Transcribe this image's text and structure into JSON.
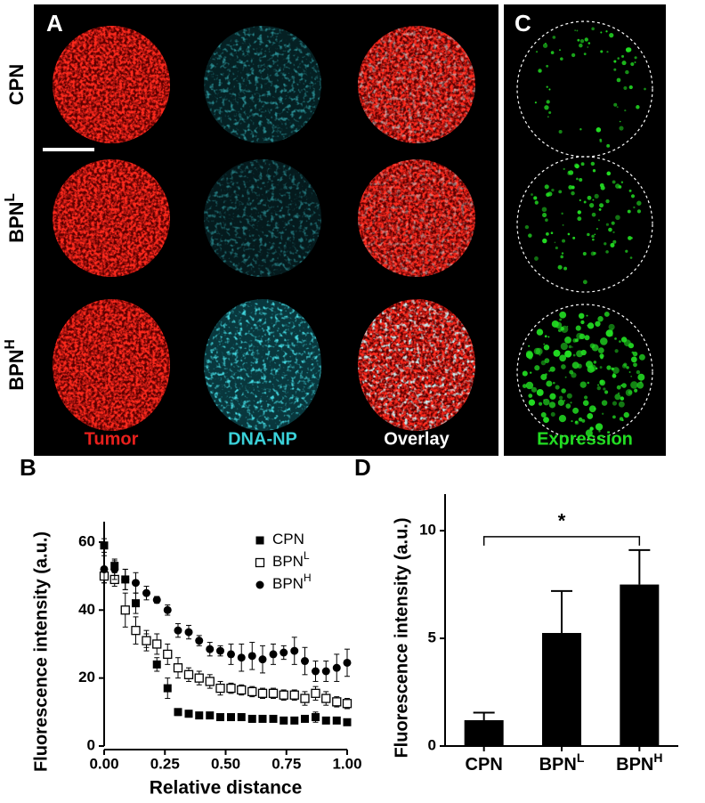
{
  "panel_a": {
    "label": "A",
    "rows": [
      {
        "text": "CPN"
      },
      {
        "text": "BPN",
        "sup": "L"
      },
      {
        "text": "BPN",
        "sup": "H"
      }
    ],
    "columns": [
      {
        "text": "Tumor",
        "color": "#e8201c"
      },
      {
        "text": "DNA-NP",
        "color": "#3ad0d8"
      },
      {
        "text": "Overlay",
        "color": "#ffffff"
      }
    ]
  },
  "panel_c": {
    "label": "C",
    "caption": "Expression",
    "color": "#22dd22"
  },
  "chart_data": [
    {
      "type": "scatter",
      "panel_label": "B",
      "y_label": "Fluorescence intensity (a.u.)",
      "x_label": "Relative distance",
      "x": [
        0,
        0.043,
        0.087,
        0.13,
        0.174,
        0.217,
        0.261,
        0.304,
        0.348,
        0.391,
        0.435,
        0.478,
        0.522,
        0.565,
        0.609,
        0.652,
        0.696,
        0.739,
        0.783,
        0.826,
        0.87,
        0.913,
        0.957,
        1
      ],
      "series": [
        {
          "name": "CPN",
          "color": "#000000",
          "marker": "square-filled",
          "values": [
            59,
            53,
            49,
            42,
            31,
            24,
            17,
            10,
            9.5,
            9,
            9,
            8.5,
            8.5,
            8.5,
            8,
            8,
            8,
            7.5,
            7.5,
            8,
            8.5,
            7.5,
            7.5,
            7
          ],
          "errors": [
            2,
            1.5,
            3,
            3,
            2,
            2,
            3,
            1,
            1,
            0.5,
            0.5,
            0.5,
            0.5,
            1,
            1,
            0.5,
            0.5,
            0.5,
            0.5,
            0.5,
            1.5,
            0.5,
            0.5,
            0.5
          ]
        },
        {
          "name": "BPN",
          "sup": "L",
          "color": "#000000",
          "marker": "square-open",
          "values": [
            50,
            49,
            40,
            34,
            31,
            30,
            27,
            23,
            21,
            20,
            19,
            17,
            17,
            16.5,
            16,
            15.5,
            15.5,
            15,
            15,
            14,
            15.5,
            14,
            13,
            12.5
          ],
          "errors": [
            2,
            2,
            5,
            4,
            3,
            3,
            3,
            3,
            2,
            2,
            2,
            2,
            1.5,
            1.5,
            1.5,
            1.5,
            1.5,
            1.5,
            1.5,
            2,
            2,
            2,
            1.5,
            1.5
          ]
        },
        {
          "name": "BPN",
          "sup": "H",
          "color": "#000000",
          "marker": "circle-filled",
          "values": [
            52,
            52,
            49,
            48,
            45,
            43,
            40,
            34,
            33.5,
            31,
            28.5,
            28,
            27,
            26,
            26.5,
            25.5,
            27,
            27.5,
            28,
            25,
            22,
            22,
            23,
            24.5
          ],
          "errors": [
            4,
            3,
            3,
            3,
            2,
            1,
            1.5,
            2,
            2,
            1.5,
            2,
            1.5,
            3,
            4,
            4,
            4,
            3,
            2,
            4,
            4,
            3,
            3,
            4,
            4
          ]
        }
      ],
      "xlim": [
        0,
        1
      ],
      "xticks": [
        {
          "value": 0,
          "label": "0.00"
        },
        {
          "value": 0.25,
          "label": "0.25"
        },
        {
          "value": 0.5,
          "label": "0.50"
        },
        {
          "value": 0.75,
          "label": "0.75"
        },
        {
          "value": 1,
          "label": "1.00"
        }
      ],
      "ylim": [
        0,
        66
      ],
      "yticks": [
        0,
        20,
        40,
        60
      ],
      "grid": false
    },
    {
      "type": "bar",
      "panel_label": "D",
      "y_label": "Fluorescence intensity (a.u.)",
      "categories": [
        "CPN",
        "BPN",
        "BPN"
      ],
      "category_sups": [
        null,
        "L",
        "H"
      ],
      "values": [
        1.2,
        5.25,
        7.5
      ],
      "errors": [
        0.35,
        1.95,
        1.6
      ],
      "color": "#000000",
      "ylim": [
        0,
        11.7
      ],
      "yticks": [
        0,
        5,
        10
      ],
      "grid": false,
      "significance": {
        "label": "*",
        "pair": [
          0,
          2
        ]
      }
    }
  ]
}
